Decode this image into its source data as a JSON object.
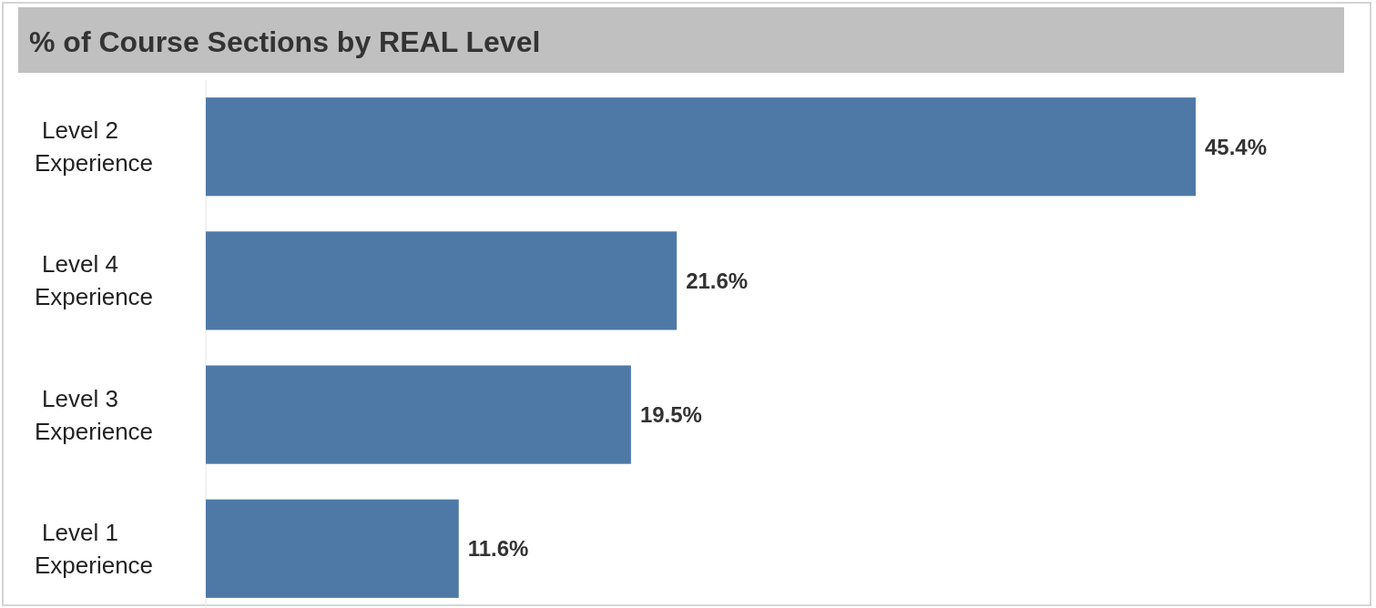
{
  "chart_data": {
    "type": "bar",
    "orientation": "horizontal",
    "title": "% of Course Sections by REAL Level",
    "categories": [
      "Level 2 Experience",
      "Level 4 Experience",
      "Level 3 Experience",
      "Level 1 Experience"
    ],
    "values": [
      45.4,
      21.6,
      19.5,
      11.6
    ],
    "value_labels": [
      "45.4%",
      "21.6%",
      "19.5%",
      "11.6%"
    ],
    "color": "#4e79a7"
  }
}
